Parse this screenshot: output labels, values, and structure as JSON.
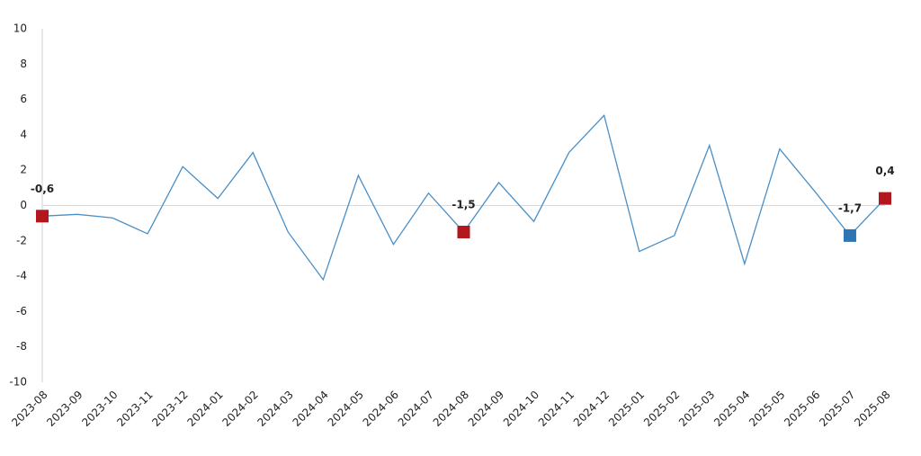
{
  "chart_data": {
    "type": "line",
    "categories": [
      "2023-08",
      "2023-09",
      "2023-10",
      "2023-11",
      "2023-12",
      "2024-01",
      "2024-02",
      "2024-03",
      "2024-04",
      "2024-05",
      "2024-06",
      "2024-07",
      "2024-08",
      "2024-09",
      "2024-10",
      "2024-11",
      "2024-12",
      "2025-01",
      "2025-02",
      "2025-03",
      "2025-04",
      "2025-05",
      "2025-06",
      "2025-07",
      "2025-08"
    ],
    "series": [
      {
        "color": "#4a8fc6",
        "values": [
          -0.6,
          -0.5,
          -0.7,
          -1.6,
          2.2,
          0.4,
          3.0,
          -1.5,
          -4.2,
          1.7,
          -2.2,
          0.7,
          -1.5,
          1.3,
          -0.9,
          3.0,
          5.1,
          -2.6,
          -1.7,
          3.4,
          -3.3,
          3.2,
          0.8,
          -1.7,
          0.4
        ],
        "value_labels": [
          "-0,6",
          null,
          null,
          null,
          null,
          null,
          null,
          null,
          null,
          null,
          null,
          null,
          "-1,5",
          null,
          null,
          null,
          null,
          null,
          null,
          null,
          null,
          null,
          null,
          "-1,7",
          "0,4"
        ],
        "marker_colors": [
          "#b2171e",
          null,
          null,
          null,
          null,
          null,
          null,
          null,
          null,
          null,
          null,
          null,
          "#b2171e",
          null,
          null,
          null,
          null,
          null,
          null,
          null,
          null,
          null,
          null,
          "#2e75b6",
          "#b2171e"
        ]
      }
    ],
    "ylim": [
      -10,
      10
    ],
    "yticks": [
      -10,
      -8,
      -6,
      -4,
      -2,
      0,
      2,
      4,
      6,
      8,
      10
    ],
    "zero_line": true
  }
}
